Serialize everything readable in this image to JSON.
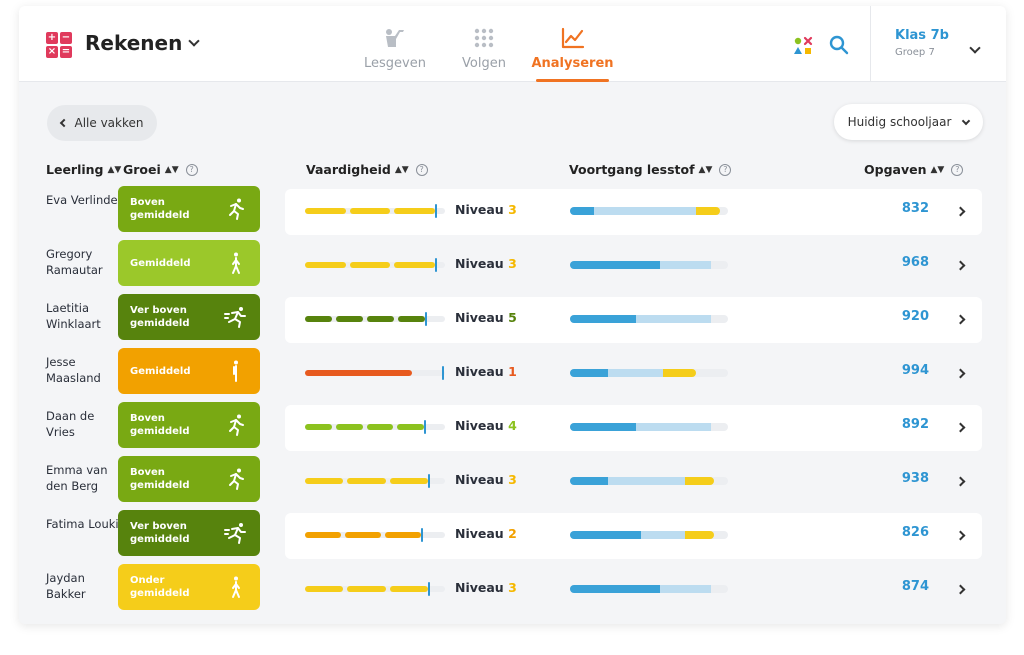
{
  "header": {
    "logo_glyphs": [
      "+",
      "−",
      "×",
      "="
    ],
    "app_title": "Rekenen",
    "nav": [
      {
        "label": "Lesgeven",
        "icon": "teach-icon"
      },
      {
        "label": "Volgen",
        "icon": "dots-grid-icon"
      },
      {
        "label": "Analyseren",
        "icon": "line-chart-icon",
        "active": true
      }
    ],
    "class_name": "Klas 7b",
    "class_group": "Groep 7"
  },
  "toolbar": {
    "back_label": "Alle vakken",
    "year_label": "Huidig schooljaar"
  },
  "columns": {
    "student": "Leerling",
    "growth": "Groei",
    "skill": "Vaardigheid",
    "progress": "Voortgang lesstof",
    "tasks": "Opgaven"
  },
  "level_prefix": "Niveau",
  "colors": {
    "accent_orange": "#f07322",
    "link_blue": "#2e95d2",
    "growth_boven": "#79a913",
    "growth_gemiddeld": "#9bc82a",
    "growth_ver_boven": "#57830d",
    "growth_onder": "#f5cd1a",
    "growth_gemiddeld_orange": "#f2a100",
    "progress_done": "#3aa2d8",
    "progress_planned": "#bcdcf0",
    "progress_extra": "#f5cd1a"
  },
  "students": [
    {
      "name": "Eva Verlinden",
      "growth": "Boven gemiddeld",
      "growth_color": "#79a913",
      "level": 3,
      "level_color": "#f5b800",
      "skill_color": "#f5cd1a",
      "skill_progress": 0.93,
      "progress": [
        0.15,
        0.8,
        0.9
      ],
      "tasks": "832"
    },
    {
      "name": "Gregory Ramautar",
      "growth": "Gemiddeld",
      "growth_color": "#9bc82a",
      "level": 3,
      "level_color": "#f5b800",
      "skill_color": "#f5cd1a",
      "skill_progress": 0.93,
      "progress": [
        0.57,
        0.89,
        0.89
      ],
      "tasks": "968"
    },
    {
      "name": "Laetitia Winklaart",
      "growth": "Ver boven gemiddeld",
      "growth_color": "#57830d",
      "level": 5,
      "level_color": "#57830d",
      "skill_color": "#57830d",
      "skill_progress": 0.86,
      "progress": [
        0.42,
        0.89,
        0.89
      ],
      "tasks": "920"
    },
    {
      "name": "Jesse Maasland",
      "growth": "Gemiddeld",
      "growth_color": "#f2a100",
      "level": 1,
      "level_color": "#e75a1f",
      "skill_color": "#e75a1f",
      "skill_progress": 0.98,
      "progress": [
        0.24,
        0.59,
        0.75
      ],
      "tasks": "994"
    },
    {
      "name": "Daan de Vries",
      "growth": "Boven gemiddeld",
      "growth_color": "#79a913",
      "level": 4,
      "level_color": "#8cc21f",
      "skill_color": "#8cc21f",
      "skill_progress": 0.85,
      "progress": [
        0.42,
        0.89,
        0.89
      ],
      "tasks": "892"
    },
    {
      "name": "Emma van den Berg",
      "growth": "Boven gemiddeld",
      "growth_color": "#79a913",
      "level": 3,
      "level_color": "#f5b800",
      "skill_color": "#f5cd1a",
      "skill_progress": 0.88,
      "progress": [
        0.24,
        0.73,
        0.86
      ],
      "tasks": "938"
    },
    {
      "name": "Fatima Loukili",
      "growth": "Ver boven gemiddeld",
      "growth_color": "#57830d",
      "level": 2,
      "level_color": "#f2a100",
      "skill_color": "#f2a100",
      "skill_progress": 0.83,
      "progress": [
        0.45,
        0.73,
        0.86
      ],
      "tasks": "826"
    },
    {
      "name": "Jaydan Bakker",
      "growth": "Onder gemiddeld",
      "growth_color": "#f5cd1a",
      "level": 3,
      "level_color": "#f5b800",
      "skill_color": "#f5cd1a",
      "skill_progress": 0.88,
      "progress": [
        0.57,
        0.89,
        0.89
      ],
      "tasks": "874"
    }
  ]
}
